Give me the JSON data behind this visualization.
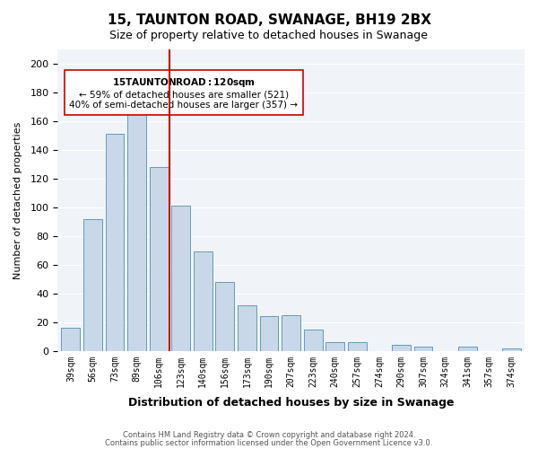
{
  "title": "15, TAUNTON ROAD, SWANAGE, BH19 2BX",
  "subtitle": "Size of property relative to detached houses in Swanage",
  "xlabel": "Distribution of detached houses by size in Swanage",
  "ylabel": "Number of detached properties",
  "bar_color": "#c8d8e8",
  "bar_edge_color": "#6699bb",
  "vline_color": "#cc0000",
  "vline_x_index": 5,
  "annotation_title": "15 TAUNTON ROAD: 120sqm",
  "annotation_line1": "← 59% of detached houses are smaller (521)",
  "annotation_line2": "40% of semi-detached houses are larger (357) →",
  "annotation_box_color": "#ffffff",
  "annotation_box_edge": "#cc0000",
  "categories": [
    "39sqm",
    "56sqm",
    "73sqm",
    "89sqm",
    "106sqm",
    "123sqm",
    "140sqm",
    "156sqm",
    "173sqm",
    "190sqm",
    "207sqm",
    "223sqm",
    "240sqm",
    "257sqm",
    "274sqm",
    "290sqm",
    "307sqm",
    "324sqm",
    "341sqm",
    "357sqm",
    "374sqm"
  ],
  "values": [
    16,
    92,
    151,
    165,
    128,
    101,
    69,
    48,
    32,
    24,
    25,
    15,
    6,
    6,
    0,
    4,
    3,
    0,
    3,
    0,
    2
  ],
  "ylim": [
    0,
    210
  ],
  "yticks": [
    0,
    20,
    40,
    60,
    80,
    100,
    120,
    140,
    160,
    180,
    200
  ],
  "footer_line1": "Contains HM Land Registry data © Crown copyright and database right 2024.",
  "footer_line2": "Contains public sector information licensed under the Open Government Licence v3.0.",
  "bg_color": "#f0f4f8"
}
